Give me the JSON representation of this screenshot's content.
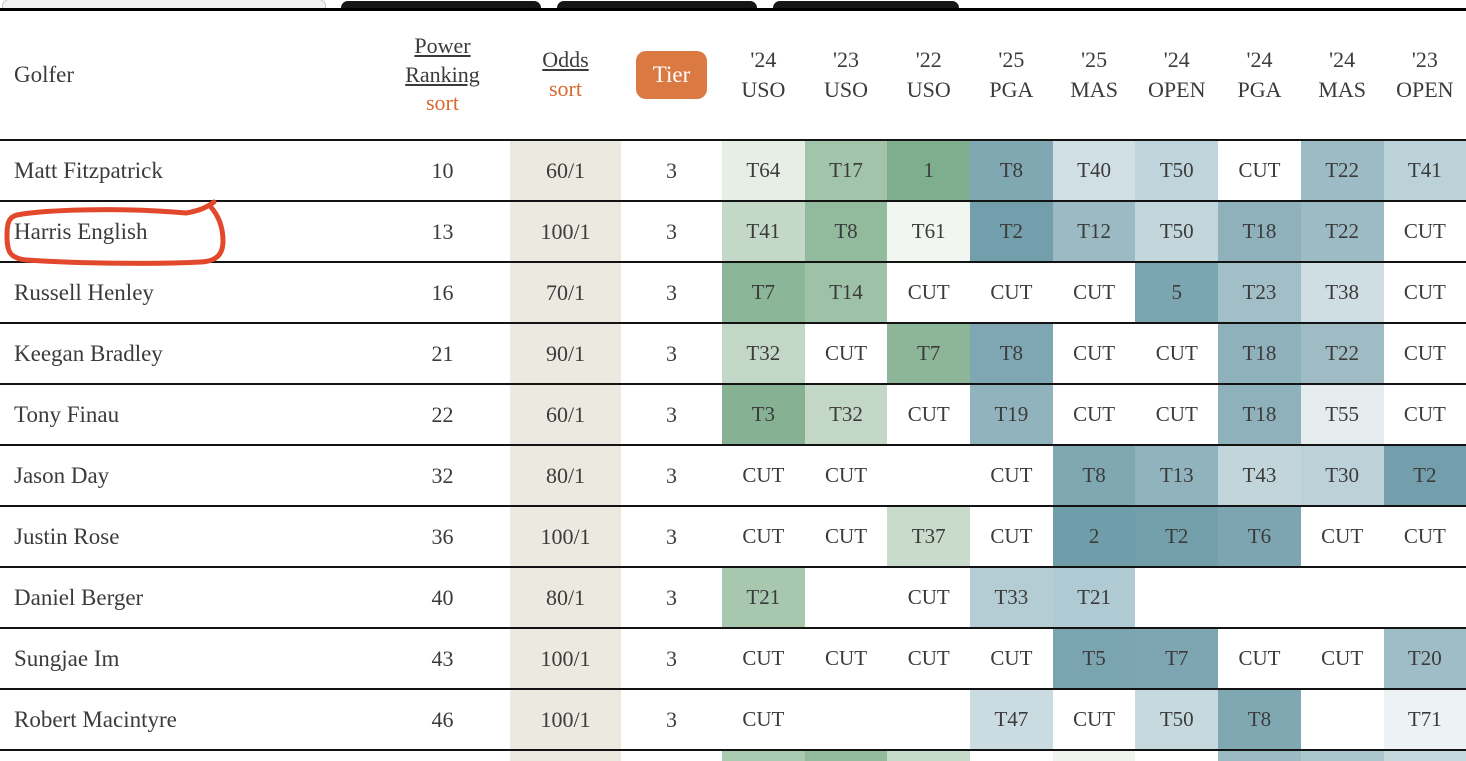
{
  "colors": {
    "accent_orange": "#da7a42",
    "sort_link_orange": "#d8692f",
    "odds_column_bg": "#ece9e0",
    "row_border": "#131313",
    "annotation_red": "#e2492c",
    "cut_cell_bg": "#ffffff"
  },
  "header": {
    "golfer": "Golfer",
    "power_ranking": {
      "label": "Power Ranking",
      "sort": "sort"
    },
    "odds": {
      "label": "Odds",
      "sort": "sort"
    },
    "tier": "Tier",
    "events": [
      {
        "year": "'24",
        "name": "USO"
      },
      {
        "year": "'23",
        "name": "USO"
      },
      {
        "year": "'22",
        "name": "USO"
      },
      {
        "year": "'25",
        "name": "PGA"
      },
      {
        "year": "'25",
        "name": "MAS"
      },
      {
        "year": "'24",
        "name": "OPEN"
      },
      {
        "year": "'24",
        "name": "PGA"
      },
      {
        "year": "'24",
        "name": "MAS"
      },
      {
        "year": "'23",
        "name": "OPEN"
      }
    ]
  },
  "rows": [
    {
      "name": "Matt Fitzpatrick",
      "power_ranking": "10",
      "odds": "60/1",
      "tier": "3",
      "results": [
        {
          "v": "T64",
          "bg": "#e7eee6"
        },
        {
          "v": "T17",
          "bg": "#a2c4aa"
        },
        {
          "v": "1",
          "bg": "#7fae8f"
        },
        {
          "v": "T8",
          "bg": "#7fa8b3"
        },
        {
          "v": "T40",
          "bg": "#cfdfe4"
        },
        {
          "v": "T50",
          "bg": "#c0d5db"
        },
        {
          "v": "CUT",
          "bg": "#ffffff"
        },
        {
          "v": "T22",
          "bg": "#9dbbc4"
        },
        {
          "v": "T41",
          "bg": "#bcd2d9"
        }
      ]
    },
    {
      "name": "Harris English",
      "power_ranking": "13",
      "odds": "100/1",
      "tier": "3",
      "results": [
        {
          "v": "T41",
          "bg": "#c4d8c7"
        },
        {
          "v": "T8",
          "bg": "#92ba9d"
        },
        {
          "v": "T61",
          "bg": "#f1f6f0"
        },
        {
          "v": "T2",
          "bg": "#729fab"
        },
        {
          "v": "T12",
          "bg": "#9bbac3"
        },
        {
          "v": "T50",
          "bg": "#c2d6dc"
        },
        {
          "v": "T18",
          "bg": "#8eb1bb"
        },
        {
          "v": "T22",
          "bg": "#9dbbc4"
        },
        {
          "v": "CUT",
          "bg": "#ffffff"
        }
      ]
    },
    {
      "name": "Russell Henley",
      "power_ranking": "16",
      "odds": "70/1",
      "tier": "3",
      "results": [
        {
          "v": "T7",
          "bg": "#8bb697"
        },
        {
          "v": "T14",
          "bg": "#9ec2a7"
        },
        {
          "v": "CUT",
          "bg": "#ffffff"
        },
        {
          "v": "CUT",
          "bg": "#ffffff"
        },
        {
          "v": "CUT",
          "bg": "#ffffff"
        },
        {
          "v": "5",
          "bg": "#7ba5b1"
        },
        {
          "v": "T23",
          "bg": "#a2bfc8"
        },
        {
          "v": "T38",
          "bg": "#cedee3"
        },
        {
          "v": "CUT",
          "bg": "#ffffff"
        }
      ]
    },
    {
      "name": "Keegan Bradley",
      "power_ranking": "21",
      "odds": "90/1",
      "tier": "3",
      "results": [
        {
          "v": "T32",
          "bg": "#c3d7c6"
        },
        {
          "v": "CUT",
          "bg": "#ffffff"
        },
        {
          "v": "T7",
          "bg": "#8cb697"
        },
        {
          "v": "T8",
          "bg": "#7fa7b3"
        },
        {
          "v": "CUT",
          "bg": "#ffffff"
        },
        {
          "v": "CUT",
          "bg": "#ffffff"
        },
        {
          "v": "T18",
          "bg": "#8eb1bb"
        },
        {
          "v": "T22",
          "bg": "#9fbcc5"
        },
        {
          "v": "CUT",
          "bg": "#ffffff"
        }
      ]
    },
    {
      "name": "Tony Finau",
      "power_ranking": "22",
      "odds": "60/1",
      "tier": "3",
      "results": [
        {
          "v": "T3",
          "bg": "#86b293"
        },
        {
          "v": "T32",
          "bg": "#c3d7c6"
        },
        {
          "v": "CUT",
          "bg": "#ffffff"
        },
        {
          "v": "T19",
          "bg": "#91b3bd"
        },
        {
          "v": "CUT",
          "bg": "#ffffff"
        },
        {
          "v": "CUT",
          "bg": "#ffffff"
        },
        {
          "v": "T18",
          "bg": "#8eb1bb"
        },
        {
          "v": "T55",
          "bg": "#e4ecee"
        },
        {
          "v": "CUT",
          "bg": "#ffffff"
        }
      ]
    },
    {
      "name": "Jason Day",
      "power_ranking": "32",
      "odds": "80/1",
      "tier": "3",
      "results": [
        {
          "v": "CUT",
          "bg": "#ffffff"
        },
        {
          "v": "CUT",
          "bg": "#ffffff"
        },
        {
          "v": "",
          "bg": "#ffffff"
        },
        {
          "v": "CUT",
          "bg": "#ffffff"
        },
        {
          "v": "T8",
          "bg": "#7fa8b3"
        },
        {
          "v": "T13",
          "bg": "#90b3bd"
        },
        {
          "v": "T43",
          "bg": "#c1d5db"
        },
        {
          "v": "T30",
          "bg": "#bcd2d8"
        },
        {
          "v": "T2",
          "bg": "#729fab"
        }
      ]
    },
    {
      "name": "Justin Rose",
      "power_ranking": "36",
      "odds": "100/1",
      "tier": "3",
      "results": [
        {
          "v": "CUT",
          "bg": "#ffffff"
        },
        {
          "v": "CUT",
          "bg": "#ffffff"
        },
        {
          "v": "T37",
          "bg": "#c9dbcb"
        },
        {
          "v": "CUT",
          "bg": "#ffffff"
        },
        {
          "v": "2",
          "bg": "#6f9daa"
        },
        {
          "v": "T2",
          "bg": "#739fab"
        },
        {
          "v": "T6",
          "bg": "#7ca5b1"
        },
        {
          "v": "CUT",
          "bg": "#ffffff"
        },
        {
          "v": "CUT",
          "bg": "#ffffff"
        }
      ]
    },
    {
      "name": "Daniel Berger",
      "power_ranking": "40",
      "odds": "80/1",
      "tier": "3",
      "results": [
        {
          "v": "T21",
          "bg": "#a7c7ae"
        },
        {
          "v": "",
          "bg": "#ffffff"
        },
        {
          "v": "CUT",
          "bg": "#ffffff"
        },
        {
          "v": "T33",
          "bg": "#b4ccd4"
        },
        {
          "v": "T21",
          "bg": "#afcad2"
        },
        {
          "v": "",
          "bg": "#ffffff"
        },
        {
          "v": "",
          "bg": "#ffffff"
        },
        {
          "v": "",
          "bg": "#ffffff"
        },
        {
          "v": "",
          "bg": "#ffffff"
        }
      ]
    },
    {
      "name": "Sungjae Im",
      "power_ranking": "43",
      "odds": "100/1",
      "tier": "3",
      "results": [
        {
          "v": "CUT",
          "bg": "#ffffff"
        },
        {
          "v": "CUT",
          "bg": "#ffffff"
        },
        {
          "v": "CUT",
          "bg": "#ffffff"
        },
        {
          "v": "CUT",
          "bg": "#ffffff"
        },
        {
          "v": "T5",
          "bg": "#7aa4b0"
        },
        {
          "v": "T7",
          "bg": "#7da6b2"
        },
        {
          "v": "CUT",
          "bg": "#ffffff"
        },
        {
          "v": "CUT",
          "bg": "#ffffff"
        },
        {
          "v": "T20",
          "bg": "#9fbdc6"
        }
      ]
    },
    {
      "name": "Robert Macintyre",
      "power_ranking": "46",
      "odds": "100/1",
      "tier": "3",
      "results": [
        {
          "v": "CUT",
          "bg": "#ffffff"
        },
        {
          "v": "",
          "bg": "#ffffff"
        },
        {
          "v": "",
          "bg": "#ffffff"
        },
        {
          "v": "T47",
          "bg": "#cadce1"
        },
        {
          "v": "CUT",
          "bg": "#ffffff"
        },
        {
          "v": "T50",
          "bg": "#c6d9de"
        },
        {
          "v": "T8",
          "bg": "#80a8b3"
        },
        {
          "v": "",
          "bg": "#ffffff"
        },
        {
          "v": "T71",
          "bg": "#edf3f4"
        }
      ]
    }
  ],
  "partial_row": {
    "bgs": [
      "#a9c9b1",
      "#92ba9d",
      "#c6dac9",
      "#ffffff",
      "#eff4f1",
      "#ffffff",
      "#9cbac3",
      "#acc6ce",
      "#c4d7dd"
    ]
  },
  "annotation": {
    "target": "Harris English"
  }
}
